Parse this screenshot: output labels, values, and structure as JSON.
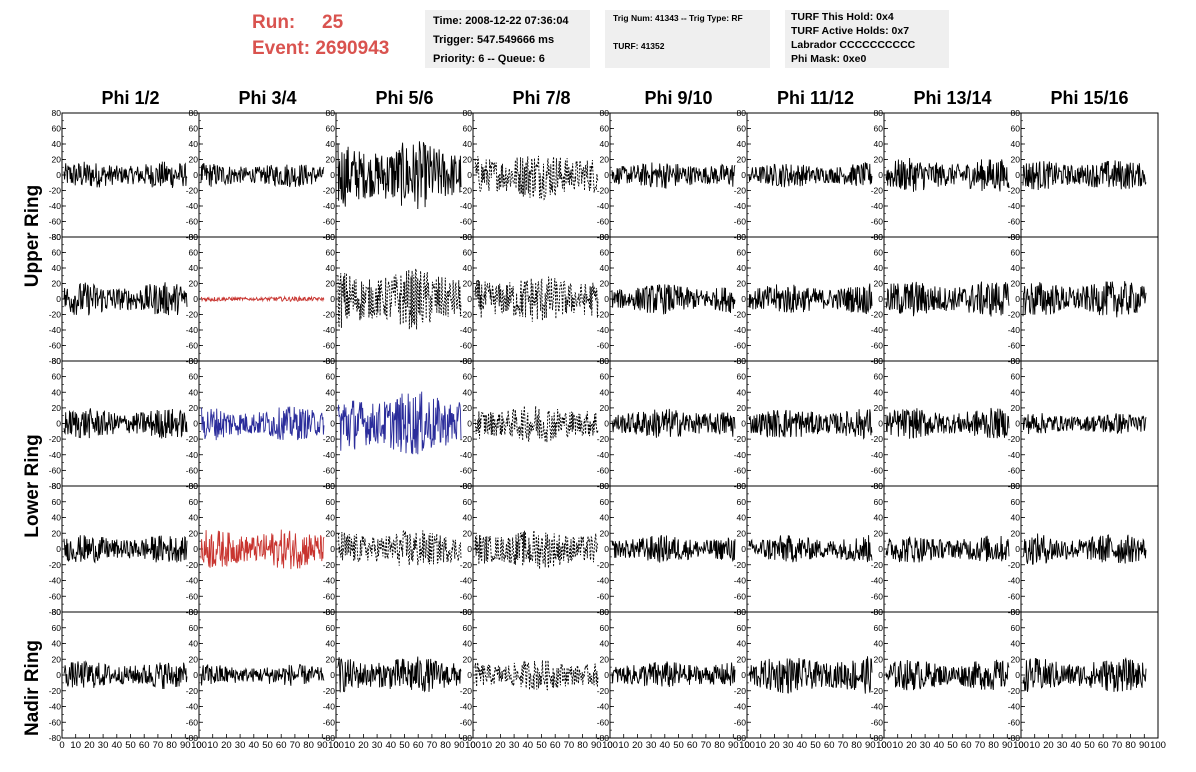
{
  "run": {
    "run_label": "Run:",
    "run_value": "25",
    "event_label": "Event:",
    "event_value": "2690943"
  },
  "info_box_1": [
    "Time: 2008-12-22 07:36:04",
    "Trigger: 547.549666 ms",
    "Priority: 6 -- Queue: 6"
  ],
  "info_box_2": [
    "Trig Num: 41343 -- Trig Type: RF",
    "TURF: 41352"
  ],
  "info_box_3": [
    "TURF This Hold: 0x4",
    "TURF Active Holds: 0x7",
    "Labrador CCCCCCCCCC",
    "Phi Mask: 0xe0"
  ],
  "columns": [
    "Phi 1/2",
    "Phi 3/4",
    "Phi 5/6",
    "Phi 7/8",
    "Phi 9/10",
    "Phi 11/12",
    "Phi 13/14",
    "Phi 15/16"
  ],
  "ring_labels": [
    "Upper Ring",
    "Lower Ring",
    "Nadir Ring"
  ],
  "y_ticks": [
    "80",
    "60",
    "40",
    "20",
    "0",
    "-20",
    "-40",
    "-60",
    "-80"
  ],
  "x_ticks": [
    "0",
    "10",
    "20",
    "30",
    "40",
    "50",
    "60",
    "70",
    "80",
    "90",
    "100"
  ],
  "colors": {
    "red": "#c8342f",
    "blue": "#2b2d9b",
    "black": "#000000",
    "header_red": "#d9534f"
  },
  "chart_data": {
    "type": "line",
    "xlim": [
      0,
      100
    ],
    "ylim": [
      -80,
      80
    ],
    "grid": false,
    "panels": [
      [
        {
          "amp": 18,
          "style": "solid",
          "color": "black"
        },
        {
          "amp": 16,
          "style": "solid",
          "color": "black"
        },
        {
          "amp": 45,
          "style": "solid",
          "color": "black"
        },
        {
          "amp": 32,
          "style": "dotted",
          "color": "black"
        },
        {
          "amp": 18,
          "style": "solid",
          "color": "black"
        },
        {
          "amp": 16,
          "style": "solid",
          "color": "black"
        },
        {
          "amp": 22,
          "style": "solid",
          "color": "black"
        },
        {
          "amp": 20,
          "style": "solid",
          "color": "black"
        }
      ],
      [
        {
          "amp": 22,
          "style": "solid",
          "color": "black"
        },
        {
          "amp": 3,
          "style": "solid",
          "color": "red"
        },
        {
          "amp": 40,
          "style": "dotted",
          "color": "black"
        },
        {
          "amp": 32,
          "style": "dotted",
          "color": "black"
        },
        {
          "amp": 20,
          "style": "solid",
          "color": "black"
        },
        {
          "amp": 20,
          "style": "solid",
          "color": "black"
        },
        {
          "amp": 24,
          "style": "solid",
          "color": "black"
        },
        {
          "amp": 24,
          "style": "solid",
          "color": "black"
        }
      ],
      [
        {
          "amp": 20,
          "style": "solid",
          "color": "black"
        },
        {
          "amp": 22,
          "style": "solid",
          "color": "blue"
        },
        {
          "amp": 42,
          "style": "solid",
          "color": "blue"
        },
        {
          "amp": 25,
          "style": "dotted",
          "color": "black"
        },
        {
          "amp": 20,
          "style": "solid",
          "color": "black"
        },
        {
          "amp": 20,
          "style": "solid",
          "color": "black"
        },
        {
          "amp": 20,
          "style": "solid",
          "color": "black"
        },
        {
          "amp": 14,
          "style": "solid",
          "color": "black"
        }
      ],
      [
        {
          "amp": 18,
          "style": "solid",
          "color": "black"
        },
        {
          "amp": 26,
          "style": "solid",
          "color": "red"
        },
        {
          "amp": 25,
          "style": "dotted",
          "color": "black"
        },
        {
          "amp": 26,
          "style": "dotted",
          "color": "black"
        },
        {
          "amp": 18,
          "style": "solid",
          "color": "black"
        },
        {
          "amp": 18,
          "style": "solid",
          "color": "black"
        },
        {
          "amp": 18,
          "style": "solid",
          "color": "black"
        },
        {
          "amp": 20,
          "style": "solid",
          "color": "black"
        }
      ],
      [
        {
          "amp": 18,
          "style": "solid",
          "color": "black"
        },
        {
          "amp": 14,
          "style": "solid",
          "color": "black"
        },
        {
          "amp": 24,
          "style": "solid",
          "color": "black"
        },
        {
          "amp": 20,
          "style": "dotted",
          "color": "black"
        },
        {
          "amp": 18,
          "style": "solid",
          "color": "black"
        },
        {
          "amp": 24,
          "style": "solid",
          "color": "black"
        },
        {
          "amp": 20,
          "style": "solid",
          "color": "black"
        },
        {
          "amp": 22,
          "style": "solid",
          "color": "black"
        }
      ]
    ]
  }
}
